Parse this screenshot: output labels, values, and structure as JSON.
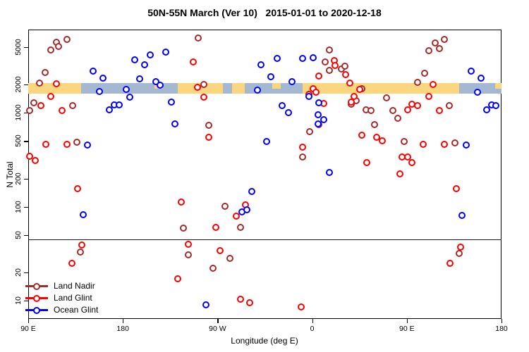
{
  "chart_data": {
    "type": "scatter",
    "title": "50N-55N March (Ver 10)   2015-01-01 to 2020-12-18",
    "xlabel": "Longitude (deg E)",
    "ylabel": "N Total",
    "x_axis": {
      "range": [
        90,
        540
      ],
      "ticks": [
        {
          "lon": 90,
          "label": "90 E"
        },
        {
          "lon": 180,
          "label": "180"
        },
        {
          "lon": 270,
          "label": "90 W"
        },
        {
          "lon": 360,
          "label": "0"
        },
        {
          "lon": 450,
          "label": "90 E"
        },
        {
          "lon": 540,
          "label": "180"
        }
      ],
      "note": "longitude wraps eastward: 90E to 180 to 90W to 0 to 90E to 180"
    },
    "y_axis": {
      "scale": "log",
      "range": [
        6.4,
        7690
      ],
      "ticks": [
        5000,
        2000,
        1000,
        500,
        200,
        100,
        50,
        20,
        10
      ]
    },
    "reference_line": {
      "value": 45,
      "color": "#1a1a1a"
    },
    "surface_band": {
      "value_range": [
        1600,
        2070
      ],
      "land_color": "#FAD67F",
      "ocean_color": "#A4B8D2",
      "segments": [
        {
          "from": 90,
          "to": 140,
          "surface": "land"
        },
        {
          "from": 140,
          "to": 232,
          "surface": "ocean"
        },
        {
          "from": 232,
          "to": 296,
          "surface": "land"
        },
        {
          "from": 296,
          "to": 351,
          "surface": "ocean"
        },
        {
          "from": 351,
          "to": 500,
          "surface": "land"
        },
        {
          "from": 500,
          "to": 540,
          "surface": "ocean"
        }
      ],
      "patches": [
        {
          "from": 210,
          "to": 218,
          "surface": "land"
        },
        {
          "from": 275,
          "to": 283.5,
          "surface": "ocean"
        },
        {
          "from": 322,
          "to": 330,
          "surface": "land"
        },
        {
          "from": 534,
          "to": 540,
          "surface": "land"
        }
      ]
    },
    "series": [
      {
        "name": "Land Nadir",
        "color": "#A52A2A",
        "points": [
          [
            116.8,
            5600
          ],
          [
            126.8,
            6000
          ],
          [
            111.4,
            4650
          ],
          [
            118.8,
            5100
          ],
          [
            106.1,
            2680
          ],
          [
            100.7,
            2070
          ],
          [
            95.4,
            1280
          ],
          [
            91.3,
            1060
          ],
          [
            132.2,
            1190
          ],
          [
            136.2,
            490
          ],
          [
            251.4,
            6250
          ],
          [
            256.8,
            2000
          ],
          [
            261.4,
            735
          ],
          [
            276.8,
            101
          ],
          [
            265.9,
            22
          ],
          [
            282,
            28
          ],
          [
            292,
            60
          ],
          [
            242.2,
            31
          ],
          [
            237.3,
            59
          ],
          [
            139.8,
            33
          ],
          [
            357.4,
            633
          ],
          [
            366.4,
            743
          ],
          [
            351.2,
            340
          ],
          [
            376.4,
            4700
          ],
          [
            372.4,
            3500
          ],
          [
            387.5,
            2940
          ],
          [
            391.4,
            3120
          ],
          [
            376.4,
            2830
          ],
          [
            407,
            1800
          ],
          [
            402.1,
            1350
          ],
          [
            411.5,
            1080
          ],
          [
            416,
            1060
          ],
          [
            471.1,
            4600
          ],
          [
            476.9,
            5570
          ],
          [
            481.3,
            4800
          ],
          [
            485.8,
            6040
          ],
          [
            466.6,
            2640
          ],
          [
            460.5,
            2100
          ],
          [
            396.9,
            1230
          ],
          [
            430.9,
            1440
          ],
          [
            436.7,
            1050
          ],
          [
            441.6,
            870
          ],
          [
            419.4,
            743
          ],
          [
            447.2,
            494
          ],
          [
            495.6,
            475
          ],
          [
            490.7,
            1190
          ],
          [
            499.7,
            32
          ]
        ]
      },
      {
        "name": "Land Glint",
        "color": "#FF0000",
        "points": [
          [
            116.8,
            2040
          ],
          [
            111.6,
            1500
          ],
          [
            101.9,
            1190
          ],
          [
            122.3,
            1060
          ],
          [
            106.7,
            460
          ],
          [
            126.8,
            460
          ],
          [
            96.7,
            310
          ],
          [
            91.1,
            346
          ],
          [
            136.9,
            155
          ],
          [
            131.3,
            25
          ],
          [
            140.9,
            39
          ],
          [
            235.8,
            113
          ],
          [
            242,
            40
          ],
          [
            232.4,
            17
          ],
          [
            268.1,
            60
          ],
          [
            272.6,
            34
          ],
          [
            287.6,
            80
          ],
          [
            296.5,
            105
          ],
          [
            292,
            10.4
          ],
          [
            300.3,
            9.5
          ],
          [
            349.4,
            8.6
          ],
          [
            246.9,
            3480
          ],
          [
            251.2,
            1870
          ],
          [
            257,
            1460
          ],
          [
            261.4,
            550
          ],
          [
            351.2,
            430
          ],
          [
            380.9,
            3620
          ],
          [
            382,
            3210
          ],
          [
            366.4,
            2480
          ],
          [
            392,
            2560
          ],
          [
            395.8,
            2060
          ],
          [
            361.2,
            1800
          ],
          [
            363.4,
            1660
          ],
          [
            356.7,
            1560
          ],
          [
            370.8,
            1260
          ],
          [
            399.9,
            1500
          ],
          [
            396.9,
            1290
          ],
          [
            405.4,
            1770
          ],
          [
            475.1,
            2000
          ],
          [
            471.1,
            1500
          ],
          [
            455,
            1230
          ],
          [
            460.5,
            1190
          ],
          [
            451,
            1080
          ],
          [
            481.3,
            1050
          ],
          [
            407,
            580
          ],
          [
            421.1,
            550
          ],
          [
            426.4,
            500
          ],
          [
            465.7,
            460
          ],
          [
            485.8,
            460
          ],
          [
            445.6,
            336
          ],
          [
            451,
            340
          ],
          [
            455,
            296
          ],
          [
            412.1,
            296
          ],
          [
            443.3,
            222
          ],
          [
            497,
            155
          ],
          [
            501.4,
            37
          ],
          [
            491.1,
            25
          ]
        ]
      },
      {
        "name": "Ocean Glint",
        "color": "#0000FF",
        "points": [
          [
            151.8,
            2790
          ],
          [
            161,
            2350
          ],
          [
            157.6,
            1680
          ],
          [
            191.6,
            3660
          ],
          [
            200.5,
            3270
          ],
          [
            206,
            4110
          ],
          [
            221,
            4430
          ],
          [
            196,
            2310
          ],
          [
            183.1,
            1780
          ],
          [
            186.4,
            1460
          ],
          [
            211.2,
            2140
          ],
          [
            215.7,
            1980
          ],
          [
            167,
            1080
          ],
          [
            171.9,
            1210
          ],
          [
            176.4,
            1210
          ],
          [
            226.1,
            1300
          ],
          [
            229.5,
            760
          ],
          [
            146.5,
            456
          ],
          [
            142.4,
            82
          ],
          [
            311,
            3230
          ],
          [
            326.6,
            3780
          ],
          [
            321,
            2410
          ],
          [
            351.2,
            3780
          ],
          [
            360.7,
            3840
          ],
          [
            341.1,
            2140
          ],
          [
            307.7,
            1750
          ],
          [
            356.7,
            1500
          ],
          [
            366.1,
            1280
          ],
          [
            331.1,
            1190
          ],
          [
            337.3,
            1005
          ],
          [
            365.7,
            950
          ],
          [
            371.3,
            845
          ],
          [
            365.9,
            760
          ],
          [
            316.6,
            494
          ],
          [
            376.6,
            231
          ],
          [
            302.5,
            146
          ],
          [
            293.1,
            88
          ],
          [
            298.1,
            93
          ],
          [
            259.2,
            9
          ],
          [
            502.3,
            81
          ],
          [
            511.2,
            2790
          ],
          [
            520.8,
            2350
          ],
          [
            517,
            1660
          ],
          [
            525.9,
            1080
          ],
          [
            530.8,
            1210
          ],
          [
            534.8,
            1190
          ],
          [
            506.3,
            456
          ]
        ]
      }
    ],
    "legend_position": "bottom-left"
  }
}
